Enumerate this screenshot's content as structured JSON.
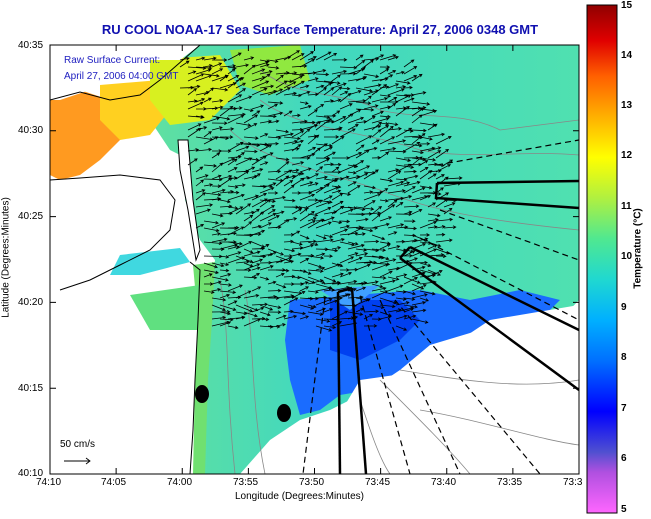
{
  "title": "RU COOL  NOAA-17  Sea Surface Temperature:  April 27, 2006 0348 GMT",
  "current_label": "Raw Surface Current:",
  "current_time": "April 27, 2006 04:00 GMT",
  "scale_label": "50 cm/s",
  "x_axis_label": "Longitude (Degrees:Minutes)",
  "y_axis_label": "Latitude (Degrees:Minutes)",
  "colorbar_label": "Temperature (°C)",
  "x_ticks": [
    "74:10",
    "74:05",
    "74:00",
    "73:55",
    "73:50",
    "73:45",
    "73:40",
    "73:35",
    "73:3"
  ],
  "y_ticks": [
    "40:35",
    "40:30",
    "40:25",
    "40:20",
    "40:15",
    "40:10"
  ],
  "colorbar_ticks": [
    "15",
    "14",
    "13",
    "12",
    "11",
    "10",
    "9",
    "8",
    "7",
    "6",
    "5"
  ],
  "colors": {
    "land": "#ffffff",
    "title_text": "#1010b0",
    "annotation_text": "#2020c0"
  },
  "colorbar_range": [
    5,
    15
  ]
}
